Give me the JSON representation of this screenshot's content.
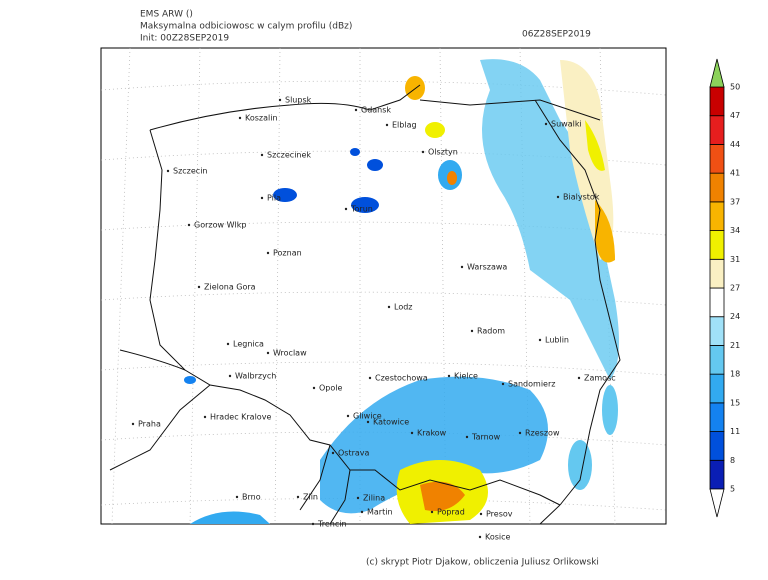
{
  "header": {
    "model": "EMS ARW ()",
    "field": "Maksymalna odbiciowosc w calym profilu (dBz)",
    "init": "Init: 00Z28SEP2019",
    "valid": "06Z28SEP2019"
  },
  "cities": [
    "Slupsk",
    "Gdansk",
    "Koszalin",
    "Elblag",
    "Suwalki",
    "Szczecinek",
    "Olsztyn",
    "Szczecin",
    "Pila",
    "Torun",
    "Bialystok",
    "Gorzow Wlkp",
    "Poznan",
    "Warszawa",
    "Zielona Gora",
    "Lodz",
    "Radom",
    "Lublin",
    "Legnica",
    "Wroclaw",
    "Walbrzych",
    "Opole",
    "Czestochowa",
    "Kielce",
    "Sandomierz",
    "Zamosc",
    "Hradec Kralove",
    "Praha",
    "Gliwice",
    "Katowice",
    "Krakow",
    "Tarnow",
    "Rzeszow",
    "Ostrava",
    "Brno",
    "Zlin",
    "Zilina",
    "Martin",
    "Poprad",
    "Presov",
    "Trencin",
    "Kosice"
  ],
  "colorbar": {
    "levels": [
      5,
      8,
      11,
      15,
      18,
      21,
      24,
      27,
      31,
      34,
      37,
      41,
      44,
      47,
      50
    ],
    "colors": [
      "#0a1eb4",
      "#0050dc",
      "#1482f0",
      "#32aaf0",
      "#64c8f0",
      "#a0e1f8",
      "#ffffff",
      "#faf0c3",
      "#f0f000",
      "#f8b400",
      "#f08200",
      "#f05014",
      "#e61e1e",
      "#c80000"
    ],
    "over_color": "#8cd25a",
    "under_color": "#ffffff"
  },
  "footer": "(c) skrypt Piotr Djakow, obliczenia Juliusz Orlikowski"
}
